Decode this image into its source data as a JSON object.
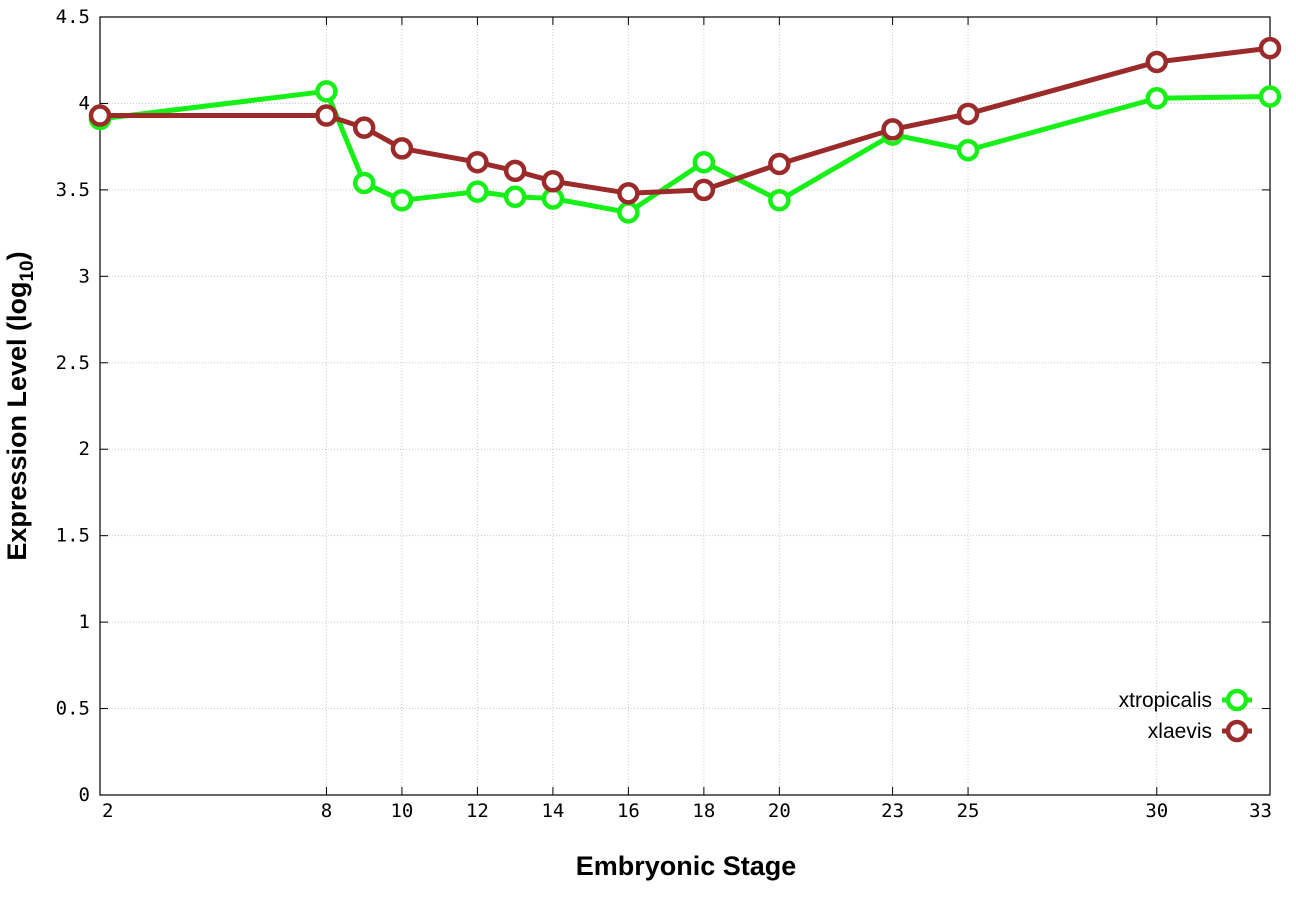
{
  "chart_data": {
    "type": "line",
    "xlabel": "Embryonic Stage",
    "ylabel_main": "Expression Level (log",
    "ylabel_sub": "10",
    "ylabel_close": ")",
    "x_ticks": [
      2,
      8,
      10,
      12,
      14,
      16,
      18,
      20,
      23,
      25,
      30,
      33
    ],
    "y_ticks": [
      "0",
      "0.5",
      "1",
      "1.5",
      "2",
      "2.5",
      "3",
      "3.5",
      "4",
      "4.5"
    ],
    "xlim": [
      2,
      33
    ],
    "ylim": [
      0,
      4.5
    ],
    "grid": true,
    "legend_position": "bottom-right",
    "x": [
      2,
      8,
      9,
      10,
      12,
      13,
      14,
      16,
      18,
      20,
      23,
      25,
      30,
      33
    ],
    "series": [
      {
        "name": "xtropicalis",
        "color": "#17f017",
        "values": [
          3.91,
          4.07,
          3.54,
          3.44,
          3.49,
          3.46,
          3.45,
          3.37,
          3.66,
          3.44,
          3.82,
          3.73,
          4.03,
          4.04
        ]
      },
      {
        "name": "xlaevis",
        "color": "#9b2a2a",
        "values": [
          3.93,
          3.93,
          3.86,
          3.74,
          3.66,
          3.61,
          3.55,
          3.48,
          3.5,
          3.65,
          3.85,
          3.94,
          4.24,
          4.32
        ]
      }
    ]
  }
}
